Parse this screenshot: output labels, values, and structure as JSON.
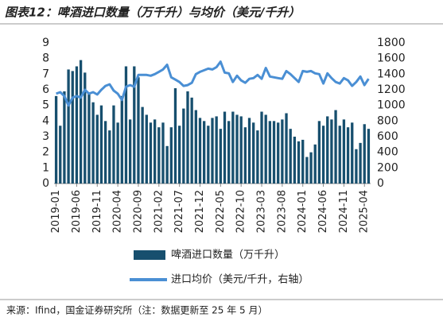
{
  "chart_data": {
    "type": "bar_line",
    "title": "图表12：啤酒进口数量（万千升）与均价（美元/千升）",
    "source": "来源：Ifind，国金证券研究所（注：数据更新至 25 年 5 月）",
    "categories": [
      "2019-01",
      null,
      null,
      null,
      null,
      "2019-06",
      null,
      null,
      null,
      null,
      "2019-11",
      null,
      null,
      null,
      null,
      "2020-04",
      null,
      null,
      null,
      null,
      "2020-09",
      null,
      null,
      null,
      null,
      "2021-02",
      null,
      null,
      null,
      null,
      "2021-07",
      null,
      null,
      null,
      null,
      "2021-12",
      null,
      null,
      null,
      null,
      "2022-05",
      null,
      null,
      null,
      null,
      "2022-10",
      null,
      null,
      null,
      null,
      "2023-03",
      null,
      null,
      null,
      null,
      "2023-08",
      null,
      null,
      null,
      null,
      "2024-01",
      null,
      null,
      null,
      null,
      "2024-06",
      null,
      null,
      null,
      null,
      "2024-11",
      null,
      null,
      null,
      null,
      "2025-04",
      null
    ],
    "series": [
      {
        "name": "啤酒进口数量（万千升）",
        "color": "#174f6e",
        "axis": "y",
        "values": [
          5.6,
          3.7,
          5.9,
          7.3,
          7.2,
          7.5,
          7.9,
          7.1,
          5.8,
          5.2,
          4.4,
          5.0,
          4.0,
          3.4,
          5.0,
          3.9,
          5.6,
          7.5,
          4.1,
          7.5,
          6.8,
          4.9,
          4.4,
          3.9,
          4.1,
          3.6,
          3.9,
          2.4,
          3.6,
          6.1,
          3.7,
          4.8,
          5.9,
          5.5,
          4.7,
          4.2,
          4.0,
          3.7,
          4.2,
          4.3,
          3.5,
          4.6,
          4.0,
          4.6,
          4.4,
          4.3,
          3.6,
          4.2,
          3.9,
          3.4,
          4.6,
          4.4,
          4.0,
          4.0,
          3.9,
          4.1,
          4.5,
          3.5,
          3.0,
          2.7,
          2.8,
          1.7,
          2.0,
          2.5,
          4.0,
          3.7,
          4.3,
          4.1,
          4.7,
          3.7,
          4.1,
          3.6,
          3.9,
          2.2,
          2.6,
          3.8,
          3.5
        ]
      },
      {
        "name": "进口均价（美元/千升，右轴）",
        "color": "#4a8fd4",
        "axis": "y2",
        "values": [
          1150,
          1170,
          1120,
          1000,
          1100,
          1120,
          1100,
          1200,
          1150,
          1170,
          1140,
          1200,
          1250,
          1270,
          1190,
          1150,
          1070,
          1240,
          1260,
          1240,
          1390,
          1390,
          1390,
          1380,
          1400,
          1430,
          1460,
          1520,
          1360,
          1330,
          1300,
          1250,
          1260,
          1290,
          1400,
          1430,
          1450,
          1470,
          1460,
          1490,
          1560,
          1420,
          1410,
          1300,
          1380,
          1320,
          1290,
          1340,
          1350,
          1390,
          1340,
          1480,
          1370,
          1360,
          1350,
          1340,
          1440,
          1400,
          1350,
          1300,
          1440,
          1430,
          1440,
          1410,
          1400,
          1280,
          1410,
          1350,
          1300,
          1280,
          1350,
          1320,
          1250,
          1300,
          1370,
          1260,
          1340
        ]
      }
    ],
    "ylim": [
      0,
      9
    ],
    "yticks": [
      0,
      1,
      2,
      3,
      4,
      5,
      6,
      7,
      8,
      9
    ],
    "y2lim": [
      0,
      1800
    ],
    "y2ticks": [
      0,
      200,
      400,
      600,
      800,
      1000,
      1200,
      1400,
      1600,
      1800
    ]
  }
}
